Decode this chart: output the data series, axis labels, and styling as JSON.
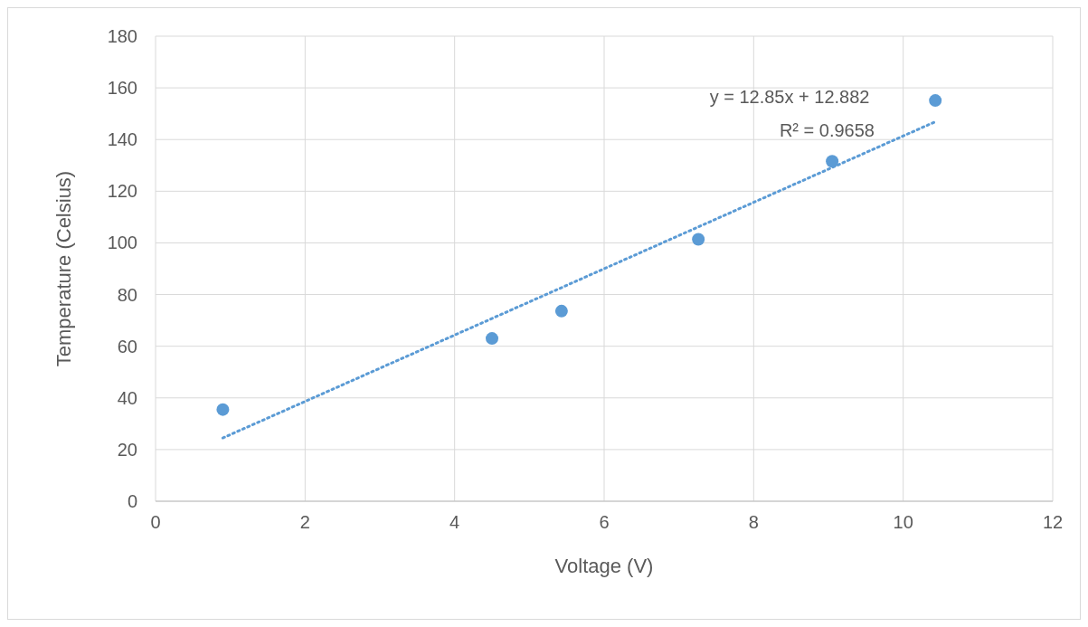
{
  "chart_data": {
    "type": "scatter",
    "xlabel": "Voltage (V)",
    "ylabel": "Temperature  (Celsius)",
    "xlim": [
      0,
      12
    ],
    "xticks": [
      0,
      2,
      4,
      6,
      8,
      10,
      12
    ],
    "ylim": [
      0,
      180
    ],
    "yticks": [
      0,
      20,
      40,
      60,
      80,
      100,
      120,
      140,
      160,
      180
    ],
    "grid": true,
    "marker": "circle",
    "series": [
      {
        "color": "#5b9bd5",
        "x": [
          0.9,
          4.5,
          5.43,
          7.26,
          9.05,
          10.43
        ],
        "values": [
          35.5,
          63,
          73.6,
          101.4,
          131.6,
          155.1
        ]
      },
      {
        "type": "line",
        "color": "#5b9bd5",
        "line_style": "dotted",
        "marker": "none",
        "x": [
          0.9,
          10.43
        ],
        "values": [
          24.5,
          146.9
        ]
      }
    ],
    "annotations": [
      "y = 12.85x + 12.882",
      "R² = 0.9658"
    ]
  }
}
